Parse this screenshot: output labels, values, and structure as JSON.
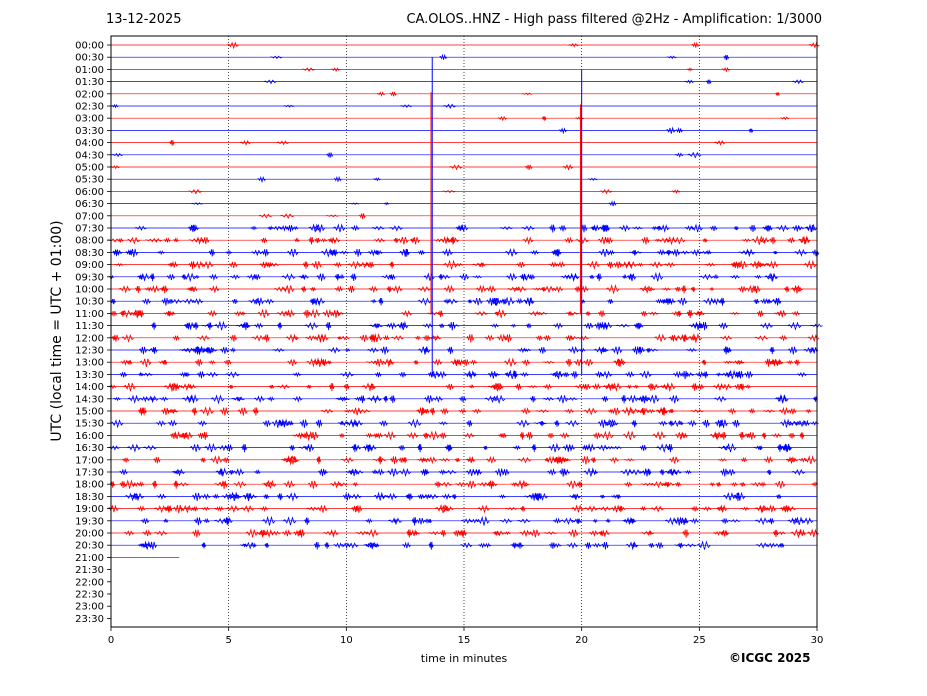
{
  "header": {
    "date": "13-12-2025",
    "title": "CA.OLOS..HNZ - High pass filtered @2Hz - Amplification: 1/3000"
  },
  "footer": {
    "copyright": "©ICGC 2025"
  },
  "chart_data": {
    "type": "line",
    "title": "CA.OLOS..HNZ - High pass filtered @2Hz - Amplification: 1/3000",
    "subtitle": "13-12-2025",
    "xlabel": "time in minutes",
    "ylabel": "UTC (local time = UTC + 01:00)",
    "xlim": [
      0,
      30
    ],
    "x_ticks": [
      0,
      5,
      10,
      15,
      20,
      25,
      30
    ],
    "vertical_gridlines_at": [
      5,
      10,
      15,
      20,
      25
    ],
    "y_tick_labels": [
      "00:00",
      "00:30",
      "01:00",
      "01:30",
      "02:00",
      "02:30",
      "03:00",
      "03:30",
      "04:00",
      "04:30",
      "05:00",
      "05:30",
      "06:00",
      "06:30",
      "07:00",
      "07:30",
      "08:00",
      "08:30",
      "09:00",
      "09:30",
      "10:00",
      "10:30",
      "11:00",
      "11:30",
      "12:00",
      "12:30",
      "13:00",
      "13:30",
      "14:00",
      "14:30",
      "15:00",
      "15:30",
      "16:00",
      "16:30",
      "17:00",
      "17:30",
      "18:00",
      "18:30",
      "19:00",
      "19:30",
      "20:00",
      "20:30",
      "21:00",
      "21:30",
      "22:00",
      "22:30",
      "23:00",
      "23:30"
    ],
    "trace_colors": [
      "#ff0000",
      "#0000ff"
    ],
    "last_trace": {
      "label": "21:00",
      "end_minute": 2.9
    },
    "large_events": [
      {
        "minute": 13.65,
        "from_trace": "00:30",
        "to_trace": "13:30"
      },
      {
        "minute": 20.0,
        "from_trace": "01:00",
        "to_trace": "13:30"
      }
    ]
  }
}
